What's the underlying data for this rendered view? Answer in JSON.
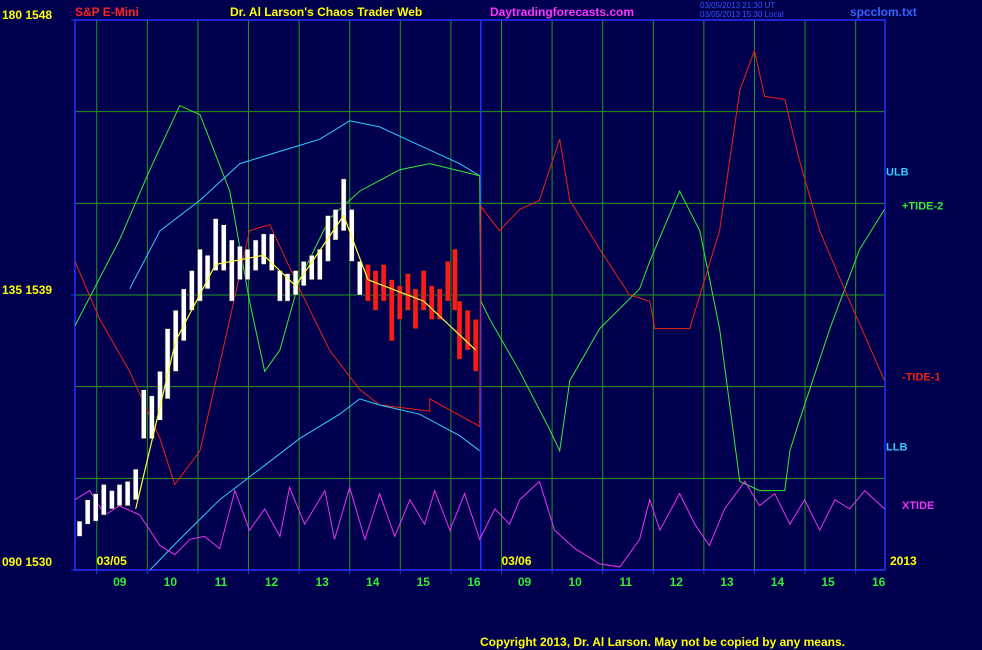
{
  "chart_data": {
    "type": "line",
    "instrument": "S&P E-Mini",
    "title": "Dr. Al Larson's Chaos Trader Web",
    "website": "Daytradingforecasts.com",
    "timestamps": [
      "03/05/2013 21:30 UT",
      "03/05/2013 15:30 Local"
    ],
    "filename": "spcclom.txt",
    "copyright": "Copyright 2013, Dr. Al Larson. May not be copied by any means.",
    "dates": [
      {
        "value": 0,
        "label": "03/05"
      },
      {
        "value": 8,
        "label": "03/06"
      }
    ],
    "year": "2013",
    "grid": true,
    "grid_color": "#1e9a1e",
    "session_start_x": 7.59,
    "xlim": [
      -0.43,
      15.58
    ],
    "xticks": [
      {
        "value": 0,
        "label": "09"
      },
      {
        "value": 1,
        "label": "10"
      },
      {
        "value": 2,
        "label": "11"
      },
      {
        "value": 3,
        "label": "12"
      },
      {
        "value": 4,
        "label": "13"
      },
      {
        "value": 5,
        "label": "14"
      },
      {
        "value": 6,
        "label": "15"
      },
      {
        "value": 7,
        "label": "16"
      },
      {
        "value": 8,
        "label": "09"
      },
      {
        "value": 9,
        "label": "10"
      },
      {
        "value": 10,
        "label": "11"
      },
      {
        "value": 11,
        "label": "12"
      },
      {
        "value": 12,
        "label": "13"
      },
      {
        "value": 13,
        "label": "14"
      },
      {
        "value": 14,
        "label": "15"
      },
      {
        "value": 15,
        "label": "16"
      }
    ],
    "ylim": [
      1530,
      1548
    ],
    "yticks": [
      {
        "value": 1548,
        "label": "180 1548"
      },
      {
        "value": 1539,
        "label": "135 1539"
      },
      {
        "value": 1530,
        "label": "090 1530"
      }
    ],
    "ygrid": [
      1533,
      1536,
      1539,
      1542,
      1545
    ],
    "series": [
      {
        "name": "ULB",
        "color": "#33ccff",
        "x": [
          0.65,
          1.25,
          2.04,
          2.83,
          3.62,
          4.41,
          5,
          5.59,
          6.38,
          7.17,
          7.57
        ],
        "values": [
          1539.2,
          1541.1,
          1542.1,
          1543.3,
          1543.7,
          1544.1,
          1544.7,
          1544.5,
          1543.9,
          1543.3,
          1542.9
        ]
      },
      {
        "name": "+TIDE-2",
        "color": "#33ee33",
        "x": [
          -0.43,
          0.45,
          1.05,
          1.64,
          2.04,
          2.63,
          3.02,
          3.32,
          3.62,
          4.01,
          4.6,
          5.2,
          5.99,
          6.58,
          7.57,
          7.59,
          7.77,
          8.36,
          8.95,
          9.15,
          9.35,
          9.94,
          10.73,
          10.93,
          11.52,
          11.92,
          12.31,
          12.71,
          13.1,
          13.6,
          13.7,
          13.89,
          14.49,
          15.08,
          15.57
        ],
        "values": [
          1538.0,
          1540.8,
          1543.1,
          1545.2,
          1544.9,
          1542.4,
          1538.8,
          1536.5,
          1537.2,
          1539.5,
          1541.5,
          1542.4,
          1543.1,
          1543.3,
          1542.9,
          1538.8,
          1538.2,
          1536.5,
          1534.6,
          1533.9,
          1536.2,
          1537.9,
          1539.2,
          1540.1,
          1542.4,
          1541.1,
          1537.9,
          1532.9,
          1532.6,
          1532.6,
          1533.9,
          1534.9,
          1537.9,
          1540.5,
          1541.8
        ]
      },
      {
        "name": "-TIDE-1",
        "color": "#ee2211",
        "x": [
          -0.43,
          0.06,
          0.65,
          1.25,
          1.54,
          2.04,
          2.63,
          3.02,
          3.42,
          4.01,
          4.6,
          5.2,
          5.59,
          6.58,
          6.58,
          7.57,
          7.59,
          7.96,
          8.36,
          8.75,
          9.15,
          9.35,
          9.94,
          10.53,
          10.93,
          11.03,
          11.72,
          12.31,
          12.71,
          13,
          13.2,
          13.6,
          13.89,
          14.29,
          14.88,
          15.57
        ],
        "values": [
          1540.1,
          1538.2,
          1536.5,
          1534.3,
          1532.8,
          1533.9,
          1538.2,
          1541.1,
          1541.3,
          1539.2,
          1537.2,
          1535.9,
          1535.4,
          1535.2,
          1535.6,
          1534.7,
          1541.9,
          1541.1,
          1541.8,
          1542.1,
          1544.1,
          1542.1,
          1540.5,
          1539.0,
          1538.8,
          1537.9,
          1537.9,
          1541.1,
          1545.7,
          1547.0,
          1545.5,
          1545.4,
          1543.4,
          1541.1,
          1538.8,
          1536.2
        ]
      },
      {
        "name": "LLB",
        "color": "#33ccff",
        "x": [
          1.05,
          1.64,
          2.43,
          3.22,
          4.01,
          4.8,
          5.2,
          5.59,
          6.38,
          7.17,
          7.57
        ],
        "values": [
          1530.0,
          1531.0,
          1532.3,
          1533.3,
          1534.3,
          1535.1,
          1535.6,
          1535.4,
          1535.1,
          1534.4,
          1533.9
        ]
      },
      {
        "name": "XTIDE",
        "color": "#ee33ee",
        "x": [
          -0.43,
          -0.14,
          0.16,
          0.45,
          0.85,
          1.25,
          1.54,
          1.84,
          2.13,
          2.43,
          2.73,
          3.02,
          3.32,
          3.62,
          3.81,
          4.11,
          4.51,
          4.7,
          5,
          5.3,
          5.59,
          5.89,
          6.19,
          6.48,
          6.68,
          6.98,
          7.27,
          7.57,
          7.87,
          8.16,
          8.36,
          8.75,
          9.05,
          9.45,
          9.94,
          10.34,
          10.73,
          10.93,
          11.13,
          11.52,
          11.82,
          12.11,
          12.41,
          12.81,
          13.1,
          13.4,
          13.7,
          13.99,
          14.29,
          14.59,
          14.88,
          15.18,
          15.57
        ],
        "values": [
          1532.3,
          1532.6,
          1531.8,
          1532.1,
          1531.8,
          1530.8,
          1530.5,
          1531.0,
          1531.1,
          1530.7,
          1532.6,
          1531.3,
          1532.0,
          1531.1,
          1532.7,
          1531.5,
          1532.6,
          1531.0,
          1532.7,
          1531.0,
          1532.5,
          1531.1,
          1532.3,
          1531.5,
          1532.6,
          1531.3,
          1532.5,
          1531.0,
          1532.0,
          1531.5,
          1532.3,
          1532.9,
          1531.3,
          1530.7,
          1530.2,
          1530.1,
          1531.0,
          1532.3,
          1531.3,
          1532.5,
          1531.5,
          1530.8,
          1532.0,
          1532.9,
          1532.1,
          1532.5,
          1531.5,
          1532.3,
          1531.3,
          1532.3,
          1532.0,
          1532.6,
          1532.0
        ]
      }
    ],
    "bars": [
      {
        "color": "#ffffff",
        "x": [
          -0.34,
          -0.18,
          -0.02,
          0.14,
          0.3,
          0.45,
          0.61,
          0.77,
          0.93,
          1.09,
          1.25,
          1.4,
          1.56,
          1.72,
          1.88,
          2.04,
          2.19,
          2.35,
          2.51,
          2.67,
          2.83,
          2.98,
          3.14,
          3.3,
          3.46,
          3.62,
          3.77,
          3.93,
          4.09,
          4.25,
          4.41,
          4.57,
          4.72,
          4.88,
          5.04,
          5.2
        ],
        "high": [
          1531.6,
          1532.3,
          1532.5,
          1532.8,
          1532.6,
          1532.8,
          1532.9,
          1533.3,
          1535.9,
          1535.7,
          1536.5,
          1537.9,
          1538.5,
          1539.2,
          1539.8,
          1540.5,
          1540.3,
          1541.5,
          1541.3,
          1540.8,
          1540.6,
          1540.5,
          1540.8,
          1541.0,
          1541.0,
          1539.8,
          1539.7,
          1539.8,
          1540.1,
          1540.3,
          1540.5,
          1541.6,
          1541.8,
          1542.8,
          1541.8,
          1540.1
        ],
        "low": [
          1531.1,
          1531.5,
          1531.6,
          1531.8,
          1532.0,
          1532.1,
          1532.1,
          1532.3,
          1534.3,
          1534.3,
          1534.9,
          1535.6,
          1536.5,
          1537.5,
          1538.5,
          1538.8,
          1539.2,
          1539.8,
          1539.8,
          1538.8,
          1539.5,
          1539.5,
          1539.8,
          1540.0,
          1539.8,
          1538.8,
          1538.8,
          1539.0,
          1539.3,
          1539.5,
          1539.5,
          1540.1,
          1540.8,
          1541.1,
          1540.1,
          1539.0
        ]
      },
      {
        "color": "#ff1a1a",
        "x": [
          5.36,
          5.51,
          5.67,
          5.83,
          5.99,
          6.15,
          6.3,
          6.46,
          6.62,
          6.78,
          6.94,
          7.08,
          7.17,
          7.33,
          7.49
        ],
        "high": [
          1540.0,
          1539.8,
          1540.0,
          1539.5,
          1539.3,
          1539.7,
          1539.2,
          1539.8,
          1539.3,
          1539.2,
          1540.1,
          1540.5,
          1538.8,
          1538.5,
          1538.2
        ],
        "low": [
          1538.8,
          1538.5,
          1538.8,
          1537.5,
          1538.2,
          1538.5,
          1537.9,
          1538.5,
          1538.2,
          1538.2,
          1538.8,
          1538.5,
          1536.9,
          1537.2,
          1536.5
        ]
      }
    ],
    "overlays": [
      {
        "color": "#ffff33",
        "x": [
          0.77,
          1.56,
          2.35,
          3.3,
          3.93,
          4.88,
          5.36,
          6.46,
          7.49
        ],
        "values": [
          1532.0,
          1537.5,
          1540.0,
          1540.3,
          1539.3,
          1541.6,
          1539.5,
          1538.8,
          1537.2
        ]
      }
    ]
  }
}
